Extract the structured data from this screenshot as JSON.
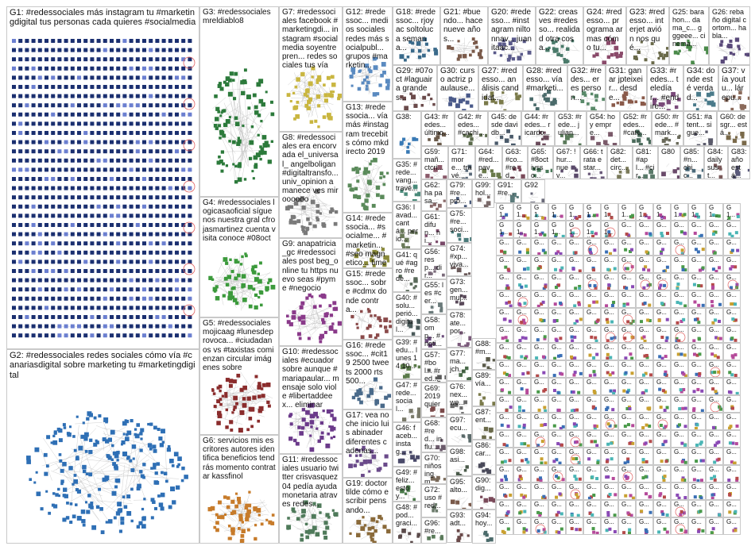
{
  "graph": {
    "groups": [
      {
        "id": "G1",
        "title": "G1: #redessociales más instagram tu #marketingdigital tus personas cada quieres #socialmedia",
        "color": "#1a2f70",
        "style": "grid"
      },
      {
        "id": "G2",
        "title": "G2: #redessociales redes sociales cómo vía #canariasdigital sobre marketing tu #marketingdigital",
        "color": "#2e6fb5",
        "style": "cluster"
      },
      {
        "id": "G3",
        "title": "G3: #redessociales mreldiablo8",
        "color": "#2c7a3b",
        "style": "cluster"
      },
      {
        "id": "G4",
        "title": "G4: #redessociales logicasaoficial síguenos nuestra gral cfrojasmartinez cuenta visita conoce #08oct",
        "color": "#3c9a3c",
        "style": "cluster"
      },
      {
        "id": "G5",
        "title": "G5: #redessociales mojicaag #lunesdeprovoca... #ciudadanos vs #taxistas comienzan circular imágenes sobre",
        "color": "#8a2c2c",
        "style": "cluster"
      },
      {
        "id": "G6",
        "title": "G6: servicios mis escritores autores identifica beneficios tendrás momento contratar kassfinol",
        "color": "#c77b2a",
        "style": "cluster"
      },
      {
        "id": "G7",
        "title": "G7: #redessociales facebook #marketingdi... instagram #socialmedia soyentrepren... redes sociales tus vía",
        "color": "#c9b640",
        "style": "cluster"
      },
      {
        "id": "G8",
        "title": "G8: #redessociales era encorvada el_universal_ angelboligan #digitaltransfo... univ_opinion amanece ves miroooooo",
        "color": "#7a7a7a",
        "style": "cluster"
      },
      {
        "id": "G9",
        "title": "G9: anapatricia_gc #redessociales post beg_online tu https nuevo seas #pyme #negocio",
        "color": "#8a3a8a",
        "style": "cluster"
      },
      {
        "id": "G10",
        "title": "G10: #redessociales #ecuador sobre aunque #mariapaular... mensaje solo viole #libertaddeex... eliminar",
        "color": "#6b3a8a",
        "style": "cluster"
      },
      {
        "id": "G11",
        "title": "G11: #redessociales usuario twitter crisvasquez04 pedía ayuda monetaria atraves redes...",
        "color": "#4f7a5a",
        "style": "cluster"
      },
      {
        "id": "G12",
        "title": "G12: #redessoc... medios sociales redes más socialpubl... grupos #marketin...",
        "color": "#5a8ac0",
        "style": "cluster"
      },
      {
        "id": "G13",
        "title": "G13: #redessocia... vía más #instagram trecebits cómo mkdirecto 2019",
        "color": "#5a8a5a",
        "style": "cluster"
      },
      {
        "id": "G14",
        "title": "G14: #redessocia... #socialme... #marketin... #seo magnetico... times...",
        "color": "#8a8a3a",
        "style": "cluster"
      },
      {
        "id": "G15",
        "title": "G15: #redessoc... sobre #cdmx donde contra...",
        "color": "#8a4a4a",
        "style": "cluster"
      },
      {
        "id": "G16",
        "title": "G16: #redessoc... #cit19 2500 tweets 2000 rts 500...",
        "color": "#4a6a8a",
        "style": "cluster"
      },
      {
        "id": "G17",
        "title": "G17: vea noche inicio luis abinader diferentes cadenas...",
        "color": "#6a4a8a",
        "style": "cluster"
      },
      {
        "id": "G18",
        "title": "G18: #redessoc... rjoyac soltoluca semana...",
        "color": "#3a6a8a",
        "style": "cluster"
      },
      {
        "id": "G19",
        "title": "G19: doctortilde cómo escribir pensando...",
        "color": "#8a6a3a",
        "style": "cluster"
      },
      {
        "id": "G20",
        "title": "G20: #redesso... #instagram niltonnav... juanitaac...",
        "color": "#5a5a8a",
        "style": "cluster"
      },
      {
        "id": "G21",
        "title": "G21: #buendo... hace nueve años...",
        "color": "#7a5a4a",
        "style": "cluster"
      },
      {
        "id": "G22",
        "title": "G22: creas ves #redesso... realidad otra cosa...",
        "color": "#4a7a6a",
        "style": "cluster"
      },
      {
        "id": "G23",
        "title": "G23: #redesso... interjet avión nos qué...",
        "color": "#6a6a4a",
        "style": "cluster"
      },
      {
        "id": "G24",
        "title": "G24: #redesso... programa armas cómo tu...",
        "color": "#8a4a6a",
        "style": "cluster"
      },
      {
        "id": "G25",
        "title": "G25: barahon... dama_c... gggeee... cinema...",
        "color": "#4a8a4a",
        "style": "cluster"
      },
      {
        "id": "G26",
        "title": "G26: rebaño digital cortom... habla...",
        "color": "#5a4a7a",
        "style": "cluster"
      },
      {
        "id": "G27",
        "title": "G27: #redesso... análisis candidat...",
        "color": "#7a7a4a",
        "style": "cluster"
      },
      {
        "id": "G28",
        "title": "G28: #redesso... vía #marketi...",
        "color": "#4a6a6a",
        "style": "cluster"
      },
      {
        "id": "G29",
        "title": "G29: #07oct #laguaira grandes...",
        "color": "#6a4a4a",
        "style": "cluster"
      },
      {
        "id": "G30",
        "title": "G30: curso actriz paulause...",
        "color": "#4a5a8a",
        "style": "cluster"
      },
      {
        "id": "G31",
        "title": "G31: ganar jpteixeir... desde...",
        "color": "#8a5a4a",
        "style": "cluster"
      },
      {
        "id": "G32",
        "title": "G32: #redes... eres person...",
        "color": "#5a8a6a",
        "style": "cluster"
      },
      {
        "id": "G33",
        "title": "G33: #redes... teledíar... #endire...",
        "color": "#7a4a7a",
        "style": "cluster"
      },
      {
        "id": "G34",
        "title": "G34: donde esté verdad...",
        "color": "#4a7a8a",
        "style": "cluster"
      },
      {
        "id": "G37",
        "title": "G37: vía youtu... lárepu...",
        "color": "#8a6a5a",
        "style": "cluster"
      },
      {
        "id": "G38",
        "title": "G38:",
        "color": "#3a7ab5",
        "style": "cluster"
      },
      {
        "id": "G43",
        "title": "G43: #redes... último...",
        "color": "#6a5a4a",
        "style": "cluster"
      },
      {
        "id": "G42",
        "title": "G42: #redes... #cachi...",
        "color": "#5a6a4a",
        "style": "cluster"
      },
      {
        "id": "G45",
        "title": "G45: desde davidb...",
        "color": "#4a5a6a",
        "style": "cluster"
      },
      {
        "id": "G44",
        "title": "G44: #redes... ricardo...",
        "color": "#6a4a5a",
        "style": "cluster"
      },
      {
        "id": "G53",
        "title": "G53: #rede... julian...",
        "color": "#5a7a5a",
        "style": "cluster"
      },
      {
        "id": "G54",
        "title": "G54: hoy empre...",
        "color": "#7a5a6a",
        "style": "cluster"
      },
      {
        "id": "G52",
        "title": "G52: #redes... #cate...",
        "color": "#4a6a5a",
        "style": "cluster"
      },
      {
        "id": "G50",
        "title": "G50: #rede... #mark...",
        "color": "#6a6a5a",
        "style": "cluster"
      },
      {
        "id": "G51",
        "title": "G51: #atent... sigue...",
        "color": "#5a5a6a",
        "style": "cluster"
      },
      {
        "id": "G60",
        "title": "G60: desgr... está...",
        "color": "#7a6a4a",
        "style": "cluster"
      },
      {
        "id": "G35",
        "title": "G35: #rede... vang... travé...",
        "color": "#4a8a7a",
        "style": "cluster"
      },
      {
        "id": "G59",
        "title": "G59: mañ... ctcri...",
        "color": "#8a5a6a",
        "style": "cluster"
      },
      {
        "id": "G71",
        "title": "G71: more... travé...",
        "color": "#5a6a7a",
        "style": "cluster"
      },
      {
        "id": "G64",
        "title": "G64: #red... pave...",
        "color": "#6a7a4a",
        "style": "cluster"
      },
      {
        "id": "G63",
        "title": "G63: #co... #red...",
        "color": "#7a4a5a",
        "style": "cluster"
      },
      {
        "id": "G65",
        "title": "G65: #8oct ivsso...",
        "color": "#4a7a5a",
        "style": "cluster"
      },
      {
        "id": "G67",
        "title": "G67: !hur... nuev...",
        "color": "#5a4a6a",
        "style": "cluster"
      },
      {
        "id": "G66",
        "title": "G66: trata estar...",
        "color": "#6a5a7a",
        "style": "cluster"
      },
      {
        "id": "G82",
        "title": "G82: det... circ...",
        "color": "#7a7a5a",
        "style": "cluster"
      },
      {
        "id": "G81",
        "title": "G81: #apl... #cir...",
        "color": "#5a7a6a",
        "style": "cluster"
      },
      {
        "id": "G80",
        "title": "G80",
        "color": "#6a4a6a",
        "style": "cluster"
      },
      {
        "id": "G85",
        "title": "G85: #n... chic...",
        "color": "#4a6a7a",
        "style": "cluster"
      },
      {
        "id": "G84",
        "title": "G84: daily sust...",
        "color": "#7a5a5a",
        "style": "cluster"
      },
      {
        "id": "G83",
        "title": "G83: año está...",
        "color": "#5a5a7a",
        "style": "cluster"
      },
      {
        "id": "G36",
        "title": "G36: lavad... cantá... perio...",
        "color": "#6a7a5a",
        "style": "cluster"
      },
      {
        "id": "G62",
        "title": "G62: ha pasa...",
        "color": "#8a6a6a",
        "style": "cluster"
      },
      {
        "id": "G79",
        "title": "G79: #re... pro...",
        "color": "#4a5a7a",
        "style": "cluster"
      },
      {
        "id": "G99",
        "title": "G99: hol...",
        "color": "#7a6a6a",
        "style": "cluster"
      },
      {
        "id": "G91",
        "title": "G91: #re...",
        "color": "#5a7a7a",
        "style": "cluster"
      },
      {
        "id": "G92",
        "title": "G92",
        "color": "#6a6a7a",
        "style": "cluster"
      },
      {
        "id": "G61",
        "title": "G61: difun... ni...",
        "color": "#7a4a6a",
        "style": "cluster"
      },
      {
        "id": "G75",
        "title": "G75: #re... soci...",
        "color": "#4a7a7a",
        "style": "cluster"
      },
      {
        "id": "G41",
        "title": "G41: qué #agro #rede...",
        "color": "#5a6a5a",
        "style": "cluster"
      },
      {
        "id": "G74",
        "title": "G74: #xp... viva...",
        "color": "#6a5a5a",
        "style": "cluster"
      },
      {
        "id": "G56",
        "title": "G56: resp... dir...",
        "color": "#7a6a7a",
        "style": "cluster"
      },
      {
        "id": "G73",
        "title": "G73: gen... muj...",
        "color": "#5a4a5a",
        "style": "cluster"
      },
      {
        "id": "G40",
        "title": "G40: #solu... perió... digital...",
        "color": "#4a5a5a",
        "style": "cluster"
      },
      {
        "id": "G55",
        "title": "G55: les #cer...",
        "color": "#6a7a7a",
        "style": "cluster"
      },
      {
        "id": "G78",
        "title": "G78: ate... por...",
        "color": "#7a5a7a",
        "style": "cluster"
      },
      {
        "id": "G39",
        "title": "G39: #edu... lunes 14 10...",
        "color": "#5a7a4a",
        "style": "cluster"
      },
      {
        "id": "G58",
        "title": "G58: omp... #noti...",
        "color": "#6a4a7a",
        "style": "cluster"
      },
      {
        "id": "G77",
        "title": "G77: ma... jch...",
        "color": "#4a6a4a",
        "style": "cluster"
      },
      {
        "id": "G47",
        "title": "G47: #rede... social...",
        "color": "#7a7a6a",
        "style": "cluster"
      },
      {
        "id": "G57",
        "title": "G57: #bol... #red...",
        "color": "#5a5a5a",
        "style": "cluster"
      },
      {
        "id": "G76",
        "title": "G76: nex... we...",
        "color": "#6a6a6a",
        "style": "cluster"
      },
      {
        "id": "G46",
        "title": "G46: faceb... instag...",
        "color": "#4a4a6a",
        "style": "cluster"
      },
      {
        "id": "G69",
        "title": "G69: 2019 quier",
        "color": "#7a4a4a",
        "style": "cluster"
      },
      {
        "id": "G97",
        "title": "G97: ecu...",
        "color": "#5a6a6a",
        "style": "cluster"
      },
      {
        "id": "G68",
        "title": "G68: #red... influ...",
        "color": "#6a5a6a",
        "style": "cluster"
      },
      {
        "id": "G49",
        "title": "G49: #feliz... estoy...",
        "color": "#4a7a4a",
        "style": "cluster"
      },
      {
        "id": "G70",
        "title": "G70: niños ingm...",
        "color": "#7a6a5a",
        "style": "cluster"
      },
      {
        "id": "G48",
        "title": "G48: #pod... graci...",
        "color": "#5a4a4a",
        "style": "cluster"
      },
      {
        "id": "G72",
        "title": "G72: uso #red...",
        "color": "#6a7a6a",
        "style": "cluster"
      },
      {
        "id": "G98",
        "title": "G98: asi...",
        "color": "#4a5a4a",
        "style": "cluster"
      },
      {
        "id": "G95",
        "title": "G95: alto...",
        "color": "#7a5a4a",
        "style": "cluster"
      },
      {
        "id": "G96",
        "title": "G96: #re...",
        "color": "#5a7a5a",
        "style": "cluster"
      },
      {
        "id": "G93",
        "title": "G93: adt...",
        "color": "#6a4a4a",
        "style": "cluster"
      },
      {
        "id": "G94",
        "title": "G94: hoy...",
        "color": "#4a6a6a",
        "style": "cluster"
      },
      {
        "id": "G89",
        "title": "G89: vía...",
        "color": "#7a7a4a",
        "style": "cluster"
      },
      {
        "id": "G88",
        "title": "G88: #m...",
        "color": "#5a5a4a",
        "style": "cluster"
      },
      {
        "id": "G87",
        "title": "G87: ent...",
        "color": "#6a6a4a",
        "style": "cluster"
      },
      {
        "id": "G86",
        "title": "G86: car...",
        "color": "#4a4a5a",
        "style": "cluster"
      },
      {
        "id": "G90",
        "title": "G90: dig...",
        "color": "#7a4a5a",
        "style": "cluster"
      }
    ],
    "small_group_label": "G...",
    "small_group_labels": [
      "G1... #re...",
      "G1... tie...",
      "G1... #r...",
      "G1... pol...",
      "G1... dis...",
      "G1... tu...",
      "G1... no...",
      "G1... cla...",
      "G1... br...",
      "G1... año...",
      "G1... tu...",
      "G1... rcn...",
      "G1... es...",
      "G1... for...",
      "G1... có...",
      "G1... de...",
      "G1... #r...",
      "G1... má...",
      "G1... sig...",
      "G1... #r...",
      "G1... #r..."
    ]
  }
}
